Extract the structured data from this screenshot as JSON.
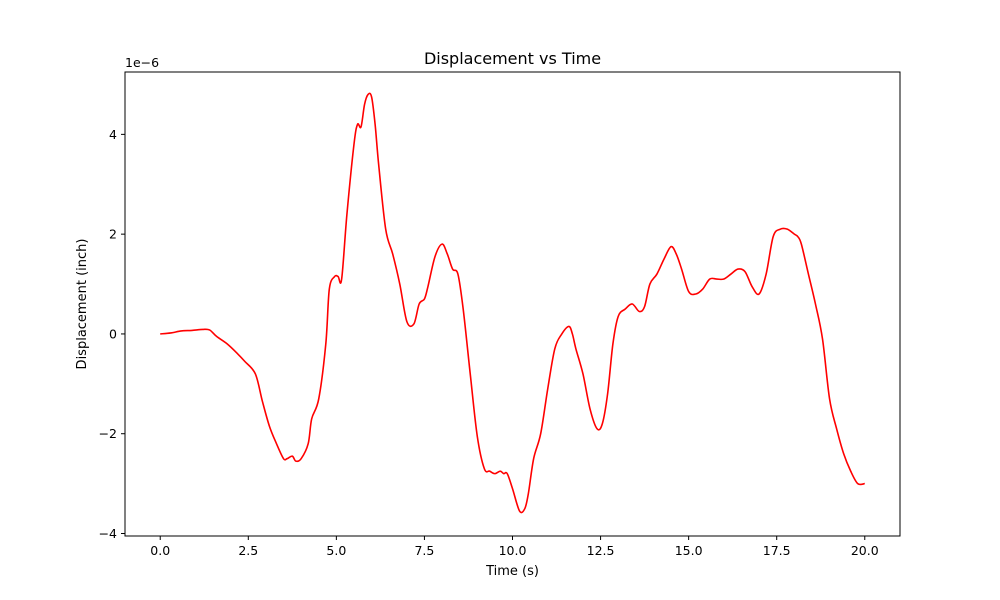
{
  "chart_data": {
    "type": "line",
    "title": "Displacement vs Time",
    "xlabel": "Time (s)",
    "ylabel": "Displacement (inch)",
    "offset_text": "1e−6",
    "xlim": [
      -1.0,
      21.0
    ],
    "ylim": [
      -4.05,
      5.25
    ],
    "x_ticks": [
      0.0,
      2.5,
      5.0,
      7.5,
      10.0,
      12.5,
      15.0,
      17.5,
      20.0
    ],
    "x_tick_labels": [
      "0.0",
      "2.5",
      "5.0",
      "7.5",
      "10.0",
      "12.5",
      "15.0",
      "17.5",
      "20.0"
    ],
    "y_ticks": [
      -4,
      -2,
      0,
      2,
      4
    ],
    "y_tick_labels": [
      "−4",
      "−2",
      "0",
      "2",
      "4"
    ],
    "grid": false,
    "series": [
      {
        "color": "#ff0000",
        "x": [
          0.0,
          0.3,
          0.6,
          0.9,
          1.2,
          1.4,
          1.6,
          1.9,
          2.2,
          2.4,
          2.7,
          2.9,
          3.1,
          3.3,
          3.5,
          3.6,
          3.75,
          3.85,
          4.0,
          4.2,
          4.3,
          4.5,
          4.7,
          4.8,
          4.95,
          5.05,
          5.15,
          5.3,
          5.5,
          5.6,
          5.7,
          5.8,
          5.9,
          6.0,
          6.1,
          6.2,
          6.4,
          6.6,
          6.8,
          7.0,
          7.2,
          7.35,
          7.5,
          7.6,
          7.8,
          8.0,
          8.15,
          8.3,
          8.45,
          8.6,
          8.8,
          9.0,
          9.2,
          9.35,
          9.5,
          9.65,
          9.75,
          9.85,
          10.0,
          10.2,
          10.35,
          10.45,
          10.6,
          10.8,
          11.0,
          11.2,
          11.4,
          11.6,
          11.7,
          11.8,
          12.0,
          12.2,
          12.4,
          12.55,
          12.7,
          12.85,
          13.0,
          13.2,
          13.4,
          13.6,
          13.75,
          13.9,
          14.1,
          14.3,
          14.5,
          14.65,
          14.8,
          15.0,
          15.2,
          15.4,
          15.6,
          15.8,
          16.0,
          16.2,
          16.4,
          16.6,
          16.8,
          17.0,
          17.2,
          17.4,
          17.6,
          17.8,
          18.0,
          18.1,
          18.2,
          18.4,
          18.6,
          18.8,
          19.0,
          19.2,
          19.4,
          19.6,
          19.8,
          20.0
        ],
        "y": [
          0.0,
          0.02,
          0.06,
          0.07,
          0.09,
          0.08,
          -0.05,
          -0.2,
          -0.4,
          -0.55,
          -0.8,
          -1.35,
          -1.85,
          -2.2,
          -2.5,
          -2.5,
          -2.45,
          -2.55,
          -2.5,
          -2.2,
          -1.7,
          -1.3,
          -0.2,
          0.9,
          1.15,
          1.15,
          1.1,
          2.4,
          3.8,
          4.2,
          4.15,
          4.6,
          4.8,
          4.75,
          4.2,
          3.4,
          2.1,
          1.6,
          1.0,
          0.25,
          0.2,
          0.6,
          0.7,
          0.95,
          1.55,
          1.8,
          1.6,
          1.3,
          1.2,
          0.5,
          -0.8,
          -2.05,
          -2.7,
          -2.75,
          -2.8,
          -2.75,
          -2.8,
          -2.8,
          -3.1,
          -3.55,
          -3.5,
          -3.2,
          -2.5,
          -2.0,
          -1.1,
          -0.3,
          0.0,
          0.15,
          0.0,
          -0.3,
          -0.8,
          -1.5,
          -1.9,
          -1.8,
          -1.2,
          -0.2,
          0.35,
          0.5,
          0.6,
          0.45,
          0.55,
          1.0,
          1.2,
          1.5,
          1.75,
          1.6,
          1.3,
          0.85,
          0.8,
          0.9,
          1.1,
          1.1,
          1.1,
          1.2,
          1.3,
          1.25,
          0.95,
          0.8,
          1.2,
          1.95,
          2.1,
          2.1,
          2.0,
          1.95,
          1.8,
          1.2,
          0.6,
          -0.1,
          -1.3,
          -1.9,
          -2.4,
          -2.75,
          -3.0,
          -3.0
        ]
      }
    ]
  }
}
